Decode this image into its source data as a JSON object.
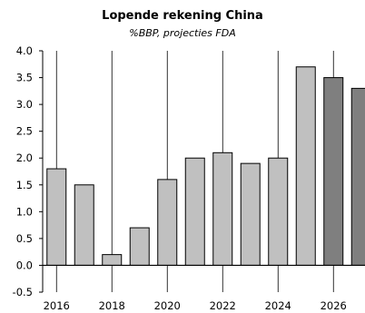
{
  "chart_data": {
    "type": "bar",
    "title": "Lopende rekening China",
    "subtitle": "%BBP, projecties FDA",
    "xlabel": "",
    "ylabel": "",
    "categories": [
      "2016",
      "2017",
      "2018",
      "2019",
      "2020",
      "2021",
      "2022",
      "2023",
      "2024",
      "2025",
      "2026",
      "2027"
    ],
    "values": [
      1.8,
      1.5,
      0.2,
      0.7,
      1.6,
      2.0,
      2.1,
      1.9,
      2.0,
      3.7,
      3.5,
      3.3
    ],
    "projection_from": "2026",
    "x_tick_labels": [
      "2016",
      "2018",
      "2020",
      "2022",
      "2024",
      "2026"
    ],
    "y_tick_labels": [
      "-0.5",
      "0.0",
      "0.5",
      "1.0",
      "1.5",
      "2.0",
      "2.5",
      "3.0",
      "3.5",
      "4.0"
    ],
    "ylim": [
      -0.5,
      4.0
    ],
    "grid": "vertical",
    "legend": "none",
    "colors": {
      "actual": "#c0c0c0",
      "projection": "#7f7f7f",
      "outline": "#000000",
      "grid": "#000000"
    }
  }
}
